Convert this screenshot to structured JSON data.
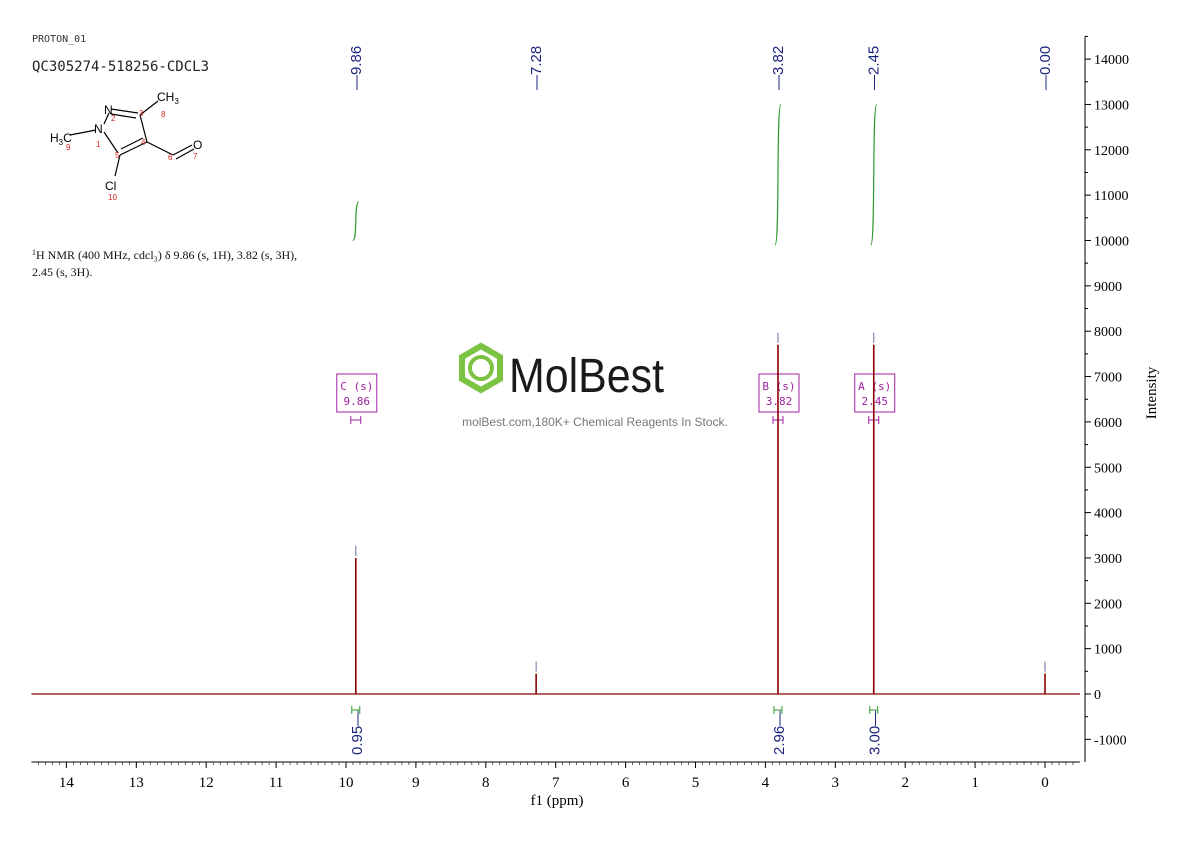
{
  "header": {
    "experiment": "PROTON_01",
    "sample": "QC305274-518256-CDCL3"
  },
  "structure": {
    "atoms": {
      "n2": "N",
      "n1": "N",
      "cl": "Cl",
      "o": "O",
      "ch3_top": "CH",
      "ch3_top_sub": "3",
      "h3c_left": "H",
      "h3c_left_sub": "3",
      "h3c_left_c": "C"
    },
    "numbers": [
      "1",
      "2",
      "3",
      "4",
      "5",
      "6",
      "7",
      "8",
      "9",
      "10"
    ]
  },
  "nmr_text": {
    "line1_sup": "1",
    "line1": "H NMR (400 MHz, cdcl₃) δ 9.86 (s, 1H), 3.82 (s, 3H),",
    "line2": "2.45 (s, 3H)."
  },
  "watermark": {
    "brand": "MolBest",
    "tagline": "molBest.com,180K+ Chemical Reagents In Stock."
  },
  "colors": {
    "spectrum": "#8b0000",
    "integral": "#2e9a2e",
    "peak_label": "#1a237e",
    "multiplet_box": "#a020a0",
    "logo_green": "#7cc243",
    "axis": "#000000"
  },
  "chart_data": {
    "type": "line",
    "xlabel": "f1 (ppm)",
    "ylabel": "Intensity",
    "xlim": [
      14.5,
      -0.5
    ],
    "ylim": [
      -1500,
      14500
    ],
    "x_ticks": [
      14,
      13,
      12,
      11,
      10,
      9,
      8,
      7,
      6,
      5,
      4,
      3,
      2,
      1,
      0
    ],
    "y_ticks": [
      -1000,
      0,
      1000,
      2000,
      3000,
      4000,
      5000,
      6000,
      7000,
      8000,
      9000,
      10000,
      11000,
      12000,
      13000,
      14000
    ],
    "peaks": [
      {
        "ppm": 9.86,
        "intensity": 3000,
        "label": "9.86"
      },
      {
        "ppm": 7.28,
        "intensity": 450,
        "label": "7.28"
      },
      {
        "ppm": 3.82,
        "intensity": 7700,
        "label": "3.82"
      },
      {
        "ppm": 2.45,
        "intensity": 7700,
        "label": "2.45"
      },
      {
        "ppm": 0.0,
        "intensity": 450,
        "label": "0.00"
      }
    ],
    "integrals": [
      {
        "ppm": 9.86,
        "value": "0.95",
        "from": 10000,
        "to": 10850
      },
      {
        "ppm": 3.82,
        "value": "2.96",
        "from": 9900,
        "to": 13000
      },
      {
        "ppm": 2.45,
        "value": "3.00",
        "from": 9900,
        "to": 13000
      }
    ],
    "multiplets": [
      {
        "ppm": 9.86,
        "line1": "C (s)",
        "line2": "9.86"
      },
      {
        "ppm": 3.82,
        "line1": "B (s)",
        "line2": "3.82"
      },
      {
        "ppm": 2.45,
        "line1": "A (s)",
        "line2": "2.45"
      }
    ]
  }
}
